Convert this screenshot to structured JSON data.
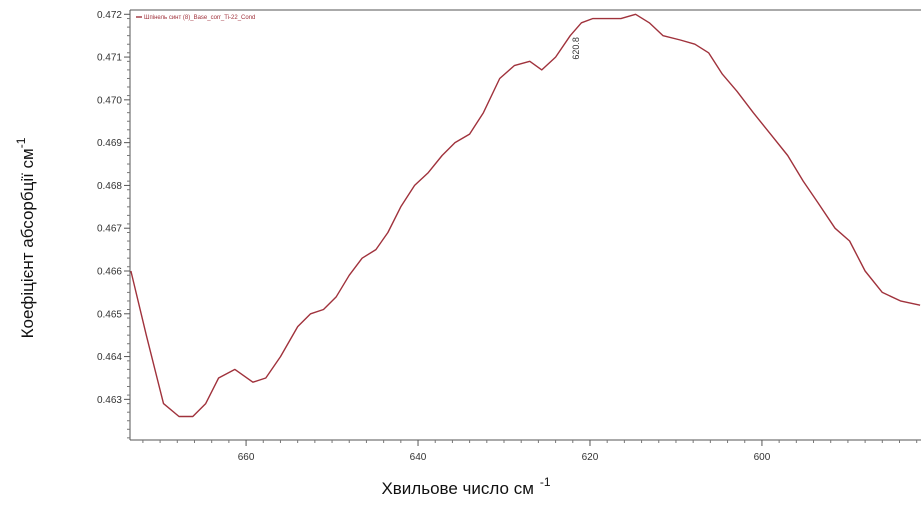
{
  "chart_data": {
    "type": "line",
    "title": "",
    "xlabel": "Хвильове число см",
    "xlabel_sup": "-1",
    "ylabel": "Коефіцієнт абсорбції см",
    "ylabel_sup": "-1",
    "xlim": [
      673.5,
      581.5
    ],
    "ylim": [
      462.05,
      472.1
    ],
    "x_ticks": [
      660,
      640,
      620,
      600
    ],
    "y_ticks": [
      0.463,
      0.464,
      0.465,
      0.466,
      0.467,
      0.468,
      0.469,
      0.47,
      0.471,
      0.472
    ],
    "grid": false,
    "legend_position": "top-left",
    "series": [
      {
        "name": "Шпінель синт (8)_Base_corr_Ti-22_Cond",
        "color": "#a0323c",
        "x": [
          673.4,
          671.6,
          669.6,
          667.8,
          666.2,
          664.7,
          663.2,
          661.3,
          659.2,
          657.7,
          656.0,
          654.0,
          652.5,
          651.0,
          649.5,
          648.0,
          646.5,
          644.9,
          643.5,
          642.0,
          640.4,
          638.8,
          637.2,
          635.7,
          634.0,
          632.4,
          630.5,
          628.8,
          627.0,
          625.6,
          624.0,
          622.3,
          621.0,
          619.7,
          618.0,
          616.4,
          614.7,
          613.1,
          611.5,
          609.5,
          607.8,
          606.2,
          604.6,
          602.9,
          601.0,
          599.0,
          597.0,
          595.2,
          593.5,
          591.5,
          589.8,
          588.0,
          586.0,
          583.9,
          581.6
        ],
        "y": [
          0.466,
          0.4645,
          0.4629,
          0.4626,
          0.4626,
          0.4629,
          0.4635,
          0.4637,
          0.4634,
          0.4635,
          0.464,
          0.4647,
          0.465,
          0.4651,
          0.4654,
          0.4659,
          0.4663,
          0.4665,
          0.4669,
          0.4675,
          0.468,
          0.4683,
          0.4687,
          0.469,
          0.4692,
          0.4697,
          0.4705,
          0.4708,
          0.4709,
          0.4707,
          0.471,
          0.4715,
          0.4718,
          0.4719,
          0.4719,
          0.4719,
          0.472,
          0.4718,
          0.4715,
          0.4714,
          0.4713,
          0.4711,
          0.4706,
          0.4702,
          0.4697,
          0.4692,
          0.4687,
          0.4681,
          0.4676,
          0.467,
          0.4667,
          0.466,
          0.4655,
          0.4653,
          0.4652
        ]
      }
    ],
    "annotations": [
      {
        "text": "620.8",
        "x": 620.8,
        "y": 0.4708
      }
    ]
  }
}
